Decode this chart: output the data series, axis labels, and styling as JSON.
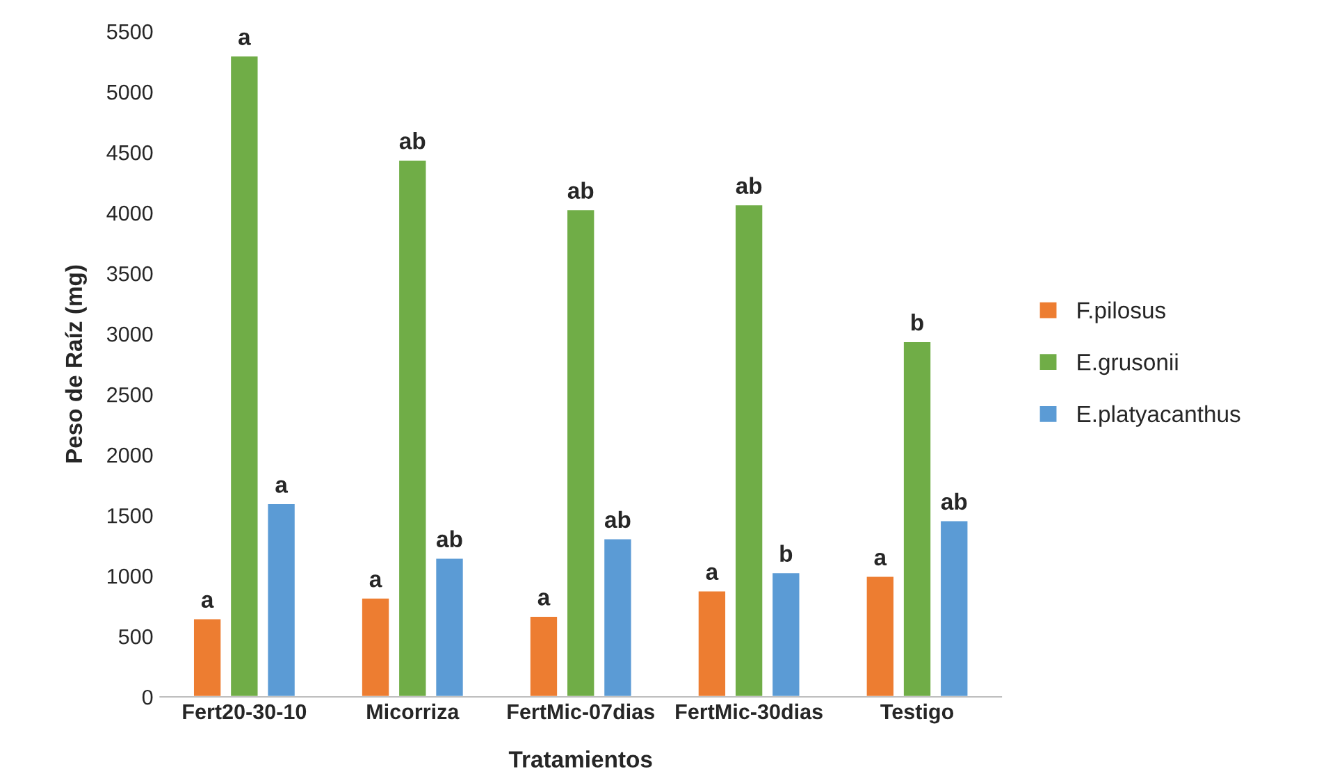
{
  "chart_data": {
    "type": "bar",
    "xlabel": "Tratamientos",
    "ylabel": "Peso de Raíz (mg)",
    "categories": [
      "Fert20-30-10",
      "Micorriza",
      "FertMic-07dias",
      "FertMic-30dias",
      "Testigo"
    ],
    "series": [
      {
        "name": "F.pilosus",
        "color": "#ed7d31",
        "values": [
          650,
          820,
          670,
          880,
          1000
        ],
        "value_labels": [
          "a",
          "a",
          "a",
          "a",
          "a"
        ]
      },
      {
        "name": "E.grusonii",
        "color": "#70ad47",
        "values": [
          5300,
          4440,
          4030,
          4070,
          2940
        ],
        "value_labels": [
          "a",
          "ab",
          "ab",
          "ab",
          "b"
        ]
      },
      {
        "name": "E.platyacanthus",
        "color": "#5b9bd5",
        "values": [
          1600,
          1150,
          1310,
          1030,
          1460
        ],
        "value_labels": [
          "a",
          "ab",
          "ab",
          "b",
          "ab"
        ]
      }
    ],
    "ylim": [
      0,
      5500
    ],
    "yticks": [
      0,
      500,
      1000,
      1500,
      2000,
      2500,
      3000,
      3500,
      4000,
      4500,
      5000,
      5500
    ],
    "grid": false,
    "legend": "right"
  }
}
